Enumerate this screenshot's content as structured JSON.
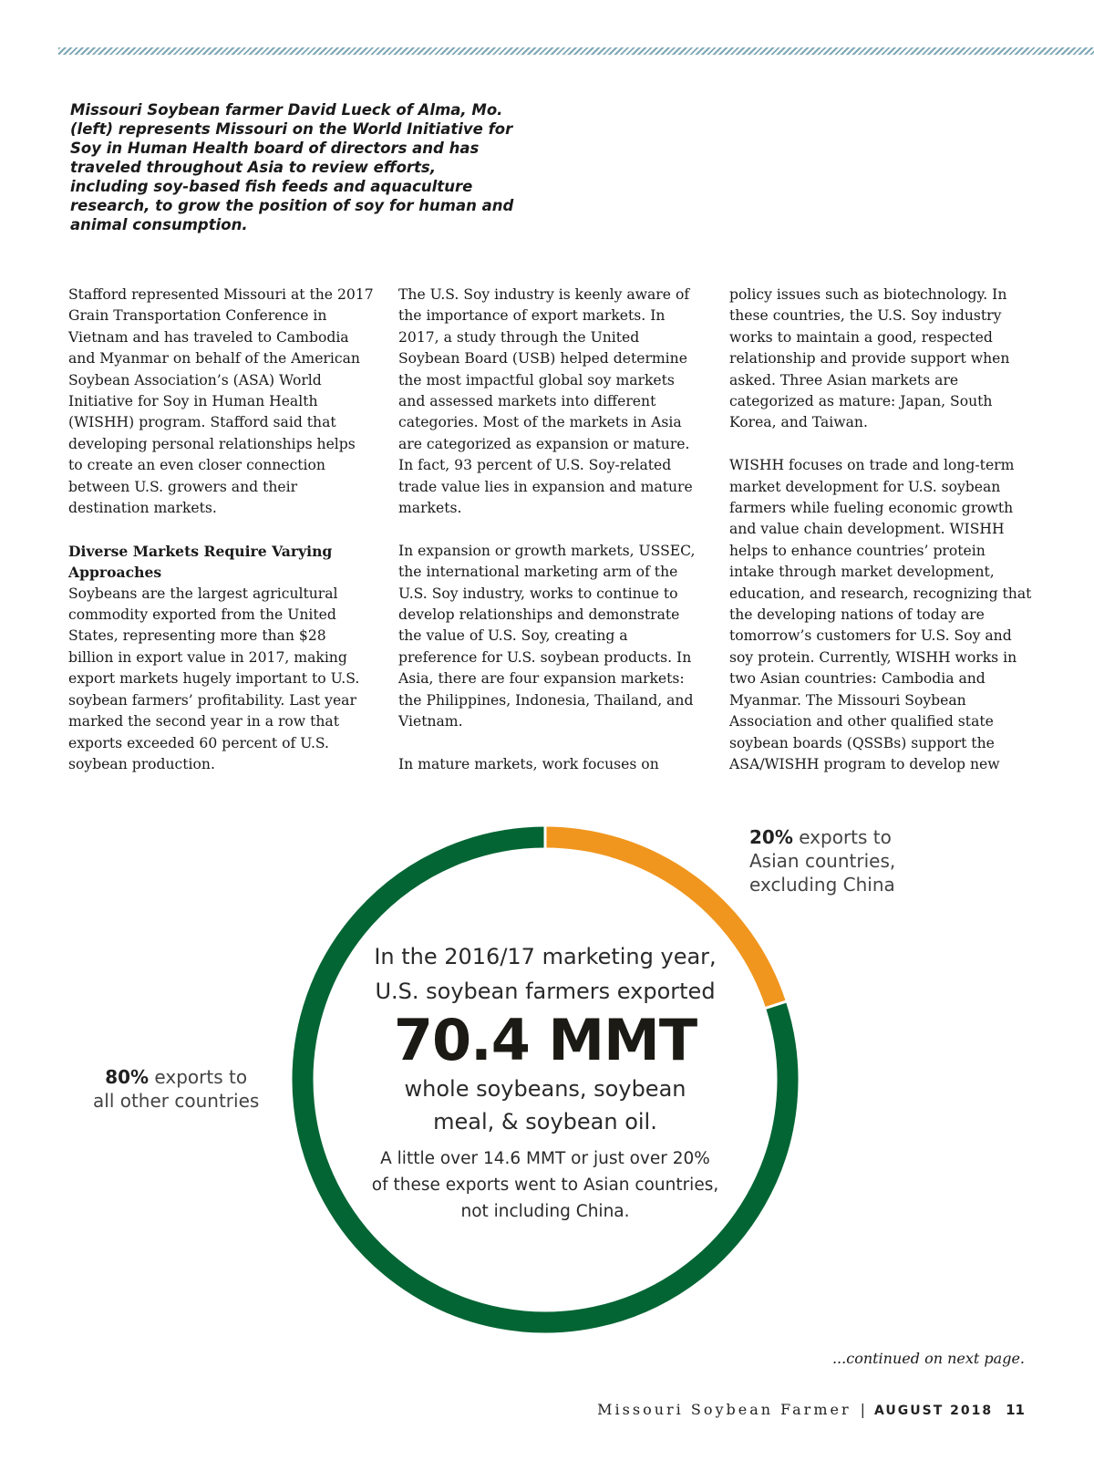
{
  "caption": "Missouri Soybean farmer David Lueck of Alma, Mo. (left) represents Missouri on the World Initiative for Soy in Human Health board of directors and has traveled throughout Asia to review efforts, including soy-based fish feeds and aquaculture research, to grow the position of soy for human and animal consumption.",
  "col1": {
    "p1": "Stafford represented Missouri at the 2017 Grain Transportation Conference in Vietnam and has traveled to Cambodia and Myanmar on behalf of the American Soybean Association’s (ASA) World Initiative for Soy in Human Health (WISHH) program. Stafford said that developing personal relationships helps to create an even closer connection between U.S. growers and their destination markets.",
    "heading": "Diverse Markets Require Varying Approaches",
    "p2": "Soybeans are the largest agricultural commodity exported from the United States, representing more than $28 billion in export value in 2017, making export markets hugely important to U.S. soybean farmers’ profitability. Last year marked the second year in a row that exports exceeded 60 percent of U.S. soybean production."
  },
  "col2": {
    "p1": "The U.S. Soy industry is keenly aware of the importance of export markets. In 2017, a study through the United Soybean Board (USB) helped determine the most impactful global soy markets and assessed markets into different categories. Most of the markets in Asia are categorized as expansion or mature. In fact, 93 percent of U.S. Soy-related trade value lies in expansion and mature markets.",
    "p2": "In expansion or growth markets, USSEC, the international marketing arm of the U.S. Soy industry, works to continue to develop relationships and demonstrate the value of U.S. Soy, creating a preference for U.S. soybean products. In Asia, there are four expansion markets: the Philippines, Indonesia, Thailand, and Vietnam.",
    "p3": "In mature markets, work focuses on"
  },
  "col3": {
    "p1": "policy issues such as biotechnology. In these countries, the U.S. Soy industry works to maintain a good, respected relationship and provide support when asked. Three Asian markets are categorized as mature:  Japan, South Korea, and Taiwan.",
    "p2": "WISHH focuses on trade and long-term market development for U.S. soybean farmers while fueling economic growth and value chain development. WISHH helps to enhance countries’ protein intake through market development, education, and research, recognizing that the developing nations of today are tomorrow’s customers for U.S. Soy and soy protein. Currently, WISHH works in two Asian countries:  Cambodia and Myanmar. The Missouri Soybean Association and other qualified state soybean boards (QSSBs) support the ASA/WISHH program to develop new"
  },
  "infographic": {
    "asia": {
      "percent": "20%",
      "text1": " exports to",
      "text2": "Asian countries,",
      "text3": "excluding China",
      "value": 20,
      "color": "#f0961e"
    },
    "other": {
      "percent": "80%",
      "text1": " exports to",
      "text2": "all other countries",
      "value": 80,
      "color": "#036534"
    },
    "line1": "In the 2016/17 marketing year,",
    "line2": "U.S. soybean farmers exported",
    "big": "70.4 MMT",
    "line3": "whole soybeans, soybean",
    "line4": "meal, & soybean oil.",
    "line5": "A little over 14.6 MMT or just over 20%",
    "line6": "of these exports went to Asian countries,",
    "line7": "not including China."
  },
  "continued": "...continued on next page.",
  "footer": {
    "magazine": "Missouri Soybean Farmer",
    "sep": "|",
    "date": "AUGUST 2018",
    "page": "11"
  }
}
